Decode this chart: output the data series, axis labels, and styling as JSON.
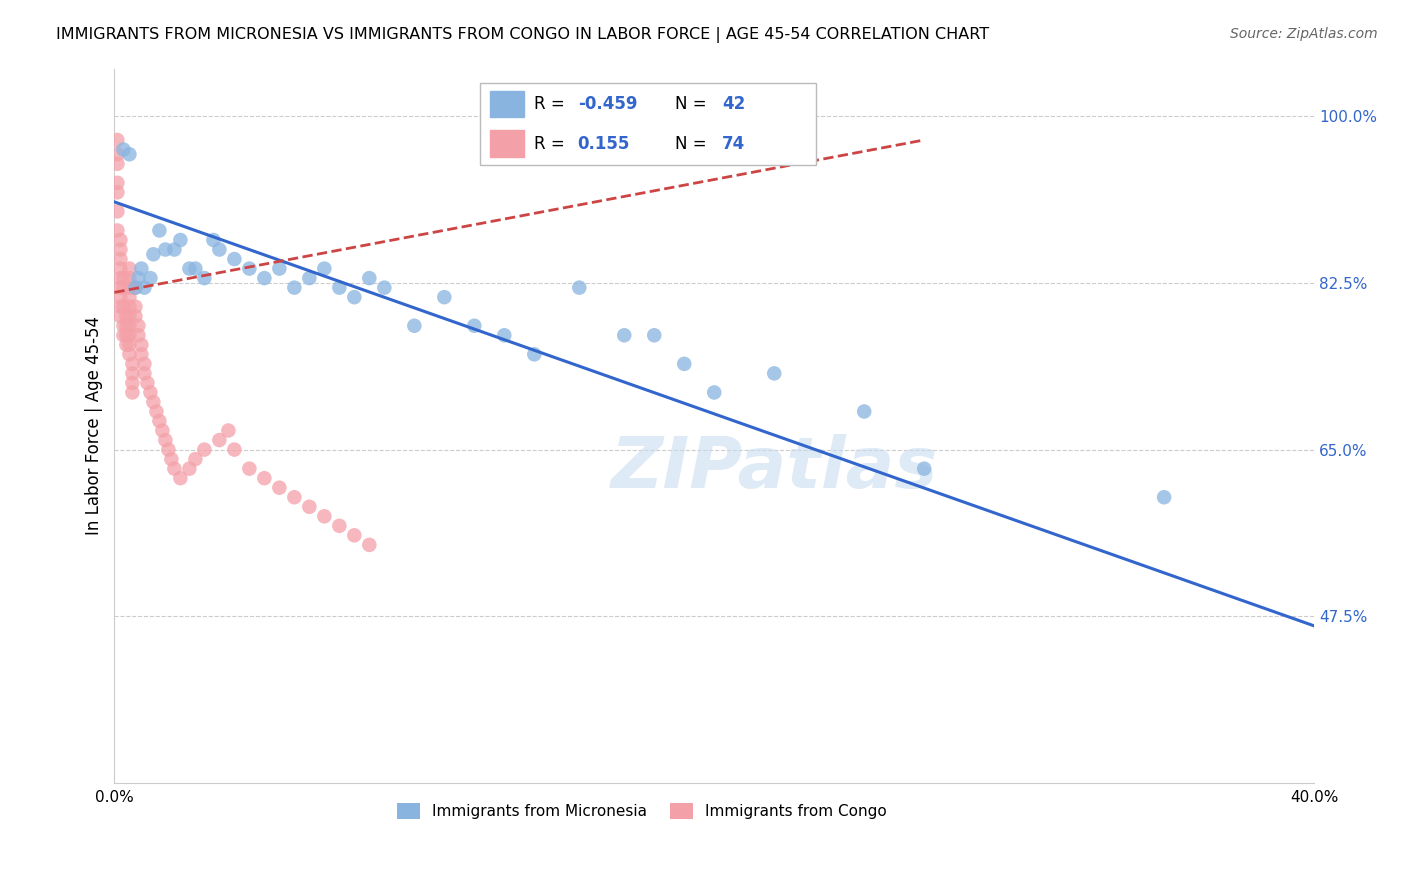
{
  "title": "IMMIGRANTS FROM MICRONESIA VS IMMIGRANTS FROM CONGO IN LABOR FORCE | AGE 45-54 CORRELATION CHART",
  "source": "Source: ZipAtlas.com",
  "ylabel": "In Labor Force | Age 45-54",
  "xlim": [
    0.0,
    0.4
  ],
  "ylim": [
    0.3,
    1.05
  ],
  "yticks": [
    0.475,
    0.65,
    0.825,
    1.0
  ],
  "ytick_labels": [
    "47.5%",
    "65.0%",
    "82.5%",
    "100.0%"
  ],
  "legend_r_micronesia": "-0.459",
  "legend_n_micronesia": "42",
  "legend_r_congo": "0.155",
  "legend_n_congo": "74",
  "micronesia_color": "#89B4E0",
  "congo_color": "#F4A0A8",
  "micronesia_line_color": "#3366CC",
  "congo_line_color": "#CC4444",
  "micronesia_x": [
    0.003,
    0.005,
    0.007,
    0.008,
    0.009,
    0.01,
    0.012,
    0.013,
    0.015,
    0.017,
    0.02,
    0.022,
    0.025,
    0.027,
    0.03,
    0.033,
    0.035,
    0.04,
    0.045,
    0.05,
    0.055,
    0.06,
    0.065,
    0.07,
    0.075,
    0.08,
    0.085,
    0.09,
    0.1,
    0.11,
    0.12,
    0.13,
    0.14,
    0.155,
    0.17,
    0.18,
    0.19,
    0.2,
    0.22,
    0.25,
    0.27,
    0.35
  ],
  "micronesia_y": [
    0.965,
    0.96,
    0.82,
    0.83,
    0.84,
    0.82,
    0.83,
    0.855,
    0.88,
    0.86,
    0.86,
    0.87,
    0.84,
    0.84,
    0.83,
    0.87,
    0.86,
    0.85,
    0.84,
    0.83,
    0.84,
    0.82,
    0.83,
    0.84,
    0.82,
    0.81,
    0.83,
    0.82,
    0.78,
    0.81,
    0.78,
    0.77,
    0.75,
    0.82,
    0.77,
    0.77,
    0.74,
    0.71,
    0.73,
    0.69,
    0.63,
    0.6
  ],
  "congo_x": [
    0.001,
    0.001,
    0.001,
    0.001,
    0.001,
    0.001,
    0.001,
    0.002,
    0.002,
    0.002,
    0.002,
    0.002,
    0.002,
    0.002,
    0.002,
    0.002,
    0.003,
    0.003,
    0.003,
    0.003,
    0.003,
    0.004,
    0.004,
    0.004,
    0.004,
    0.005,
    0.005,
    0.005,
    0.005,
    0.005,
    0.005,
    0.005,
    0.005,
    0.005,
    0.005,
    0.006,
    0.006,
    0.006,
    0.006,
    0.007,
    0.007,
    0.007,
    0.008,
    0.008,
    0.009,
    0.009,
    0.01,
    0.01,
    0.011,
    0.012,
    0.013,
    0.014,
    0.015,
    0.016,
    0.017,
    0.018,
    0.019,
    0.02,
    0.022,
    0.025,
    0.027,
    0.03,
    0.035,
    0.038,
    0.04,
    0.045,
    0.05,
    0.055,
    0.06,
    0.065,
    0.07,
    0.075,
    0.08,
    0.085
  ],
  "congo_y": [
    0.975,
    0.96,
    0.95,
    0.93,
    0.92,
    0.9,
    0.88,
    0.87,
    0.86,
    0.85,
    0.84,
    0.83,
    0.82,
    0.81,
    0.8,
    0.79,
    0.78,
    0.77,
    0.83,
    0.82,
    0.8,
    0.79,
    0.78,
    0.77,
    0.76,
    0.84,
    0.83,
    0.82,
    0.81,
    0.8,
    0.79,
    0.78,
    0.77,
    0.76,
    0.75,
    0.74,
    0.73,
    0.72,
    0.71,
    0.82,
    0.8,
    0.79,
    0.78,
    0.77,
    0.76,
    0.75,
    0.74,
    0.73,
    0.72,
    0.71,
    0.7,
    0.69,
    0.68,
    0.67,
    0.66,
    0.65,
    0.64,
    0.63,
    0.62,
    0.63,
    0.64,
    0.65,
    0.66,
    0.67,
    0.65,
    0.63,
    0.62,
    0.61,
    0.6,
    0.59,
    0.58,
    0.57,
    0.56,
    0.55
  ],
  "mic_line_x0": 0.0,
  "mic_line_y0": 0.91,
  "mic_line_x1": 0.4,
  "mic_line_y1": 0.465,
  "con_line_x0": 0.0,
  "con_line_y0": 0.815,
  "con_line_x1": 0.27,
  "con_line_y1": 0.975
}
